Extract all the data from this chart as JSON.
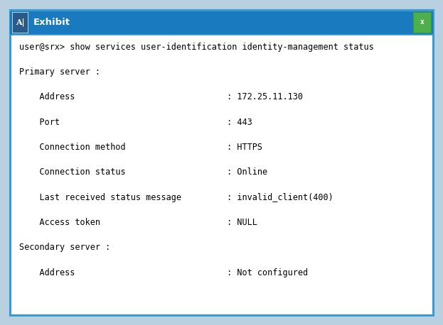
{
  "title_bar_text": "Exhibit",
  "title_bar_bg": "#1a7abf",
  "title_bar_text_color": "#ffffff",
  "window_bg": "#ffffff",
  "border_color": "#3a9ad4",
  "outer_bg": "#b8d0e0",
  "close_btn_bg": "#4db04a",
  "close_btn_border": "#3a9a37",
  "content_lines": [
    "user@srx> show services user-identification identity-management status",
    "Primary server :",
    "    Address                              : 172.25.11.130",
    "    Port                                 : 443",
    "    Connection method                    : HTTPS",
    "    Connection status                    : Online",
    "    Last received status message         : invalid_client(400)",
    "    Access token                         : NULL",
    "Secondary server :",
    "    Address                              : Not configured"
  ],
  "font_size": 8.5,
  "title_font_size": 9.5,
  "text_color": "#000000",
  "fig_width": 6.23,
  "fig_height": 4.58,
  "dpi": 100
}
